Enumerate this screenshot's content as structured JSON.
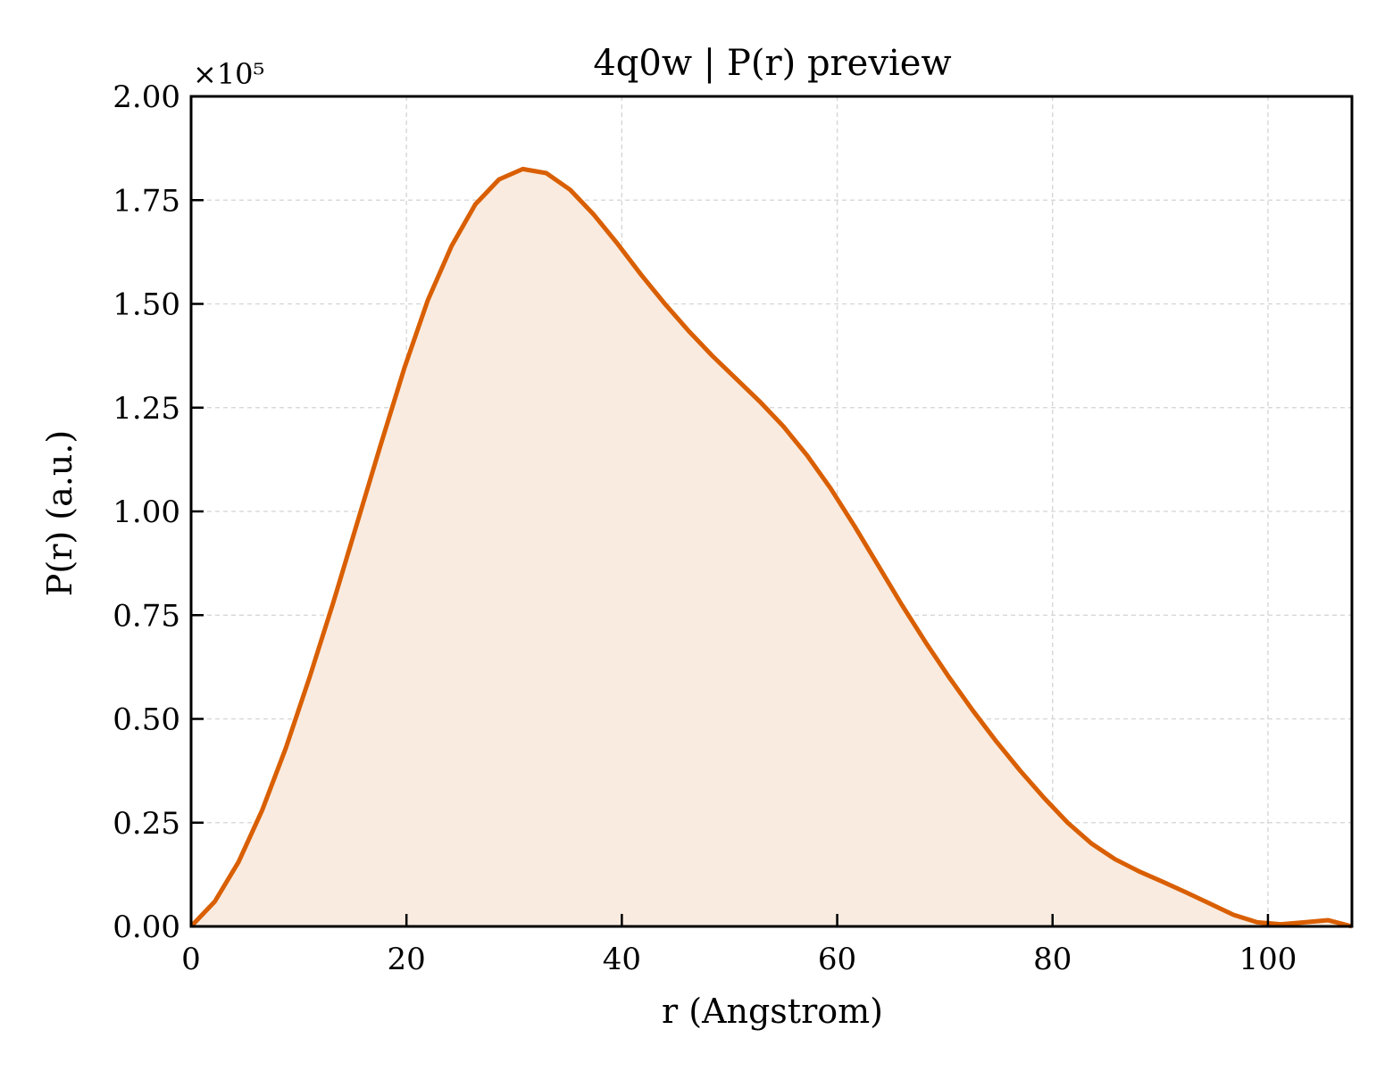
{
  "chart_data": {
    "type": "area",
    "title": "4q0w | P(r) preview",
    "xlabel": "r (Angstrom)",
    "ylabel": "P(r) (a.u.)",
    "y_multiplier_label": "×10⁵",
    "xlim": [
      0,
      107.8
    ],
    "ylim": [
      0,
      2.0
    ],
    "xticks": [
      0,
      20,
      40,
      60,
      80,
      100
    ],
    "xtick_labels": [
      "0",
      "20",
      "40",
      "60",
      "80",
      "100"
    ],
    "yticks": [
      0,
      0.25,
      0.5,
      0.75,
      1.0,
      1.25,
      1.5,
      1.75,
      2.0
    ],
    "ytick_labels": [
      "0.00",
      "0.25",
      "0.50",
      "0.75",
      "1.00",
      "1.25",
      "1.50",
      "1.75",
      "2.00"
    ],
    "grid": true,
    "line_color": "#d95f02",
    "fill_color": "#f9ebe0",
    "series": [
      {
        "x": [
          0,
          2.2,
          4.4,
          6.6,
          8.8,
          11.0,
          13.2,
          15.4,
          17.6,
          19.8,
          22.0,
          24.2,
          26.4,
          28.6,
          30.8,
          33.0,
          35.2,
          37.4,
          39.6,
          41.8,
          44.0,
          46.2,
          48.4,
          50.6,
          52.8,
          55.0,
          57.2,
          59.4,
          61.6,
          63.8,
          66.0,
          68.2,
          70.4,
          72.6,
          74.8,
          77.0,
          79.2,
          81.4,
          83.6,
          85.8,
          88.0,
          90.2,
          92.4,
          94.6,
          96.8,
          99.0,
          101.2,
          103.4,
          105.6,
          107.8
        ],
        "y": [
          0.0,
          0.06,
          0.155,
          0.28,
          0.43,
          0.6,
          0.78,
          0.97,
          1.16,
          1.345,
          1.51,
          1.64,
          1.74,
          1.8,
          1.825,
          1.815,
          1.775,
          1.715,
          1.645,
          1.57,
          1.5,
          1.435,
          1.375,
          1.32,
          1.265,
          1.205,
          1.135,
          1.055,
          0.965,
          0.87,
          0.775,
          0.685,
          0.6,
          0.52,
          0.445,
          0.375,
          0.31,
          0.25,
          0.2,
          0.162,
          0.133,
          0.108,
          0.082,
          0.055,
          0.028,
          0.01,
          0.005,
          0.01,
          0.015,
          0.0
        ]
      }
    ]
  }
}
